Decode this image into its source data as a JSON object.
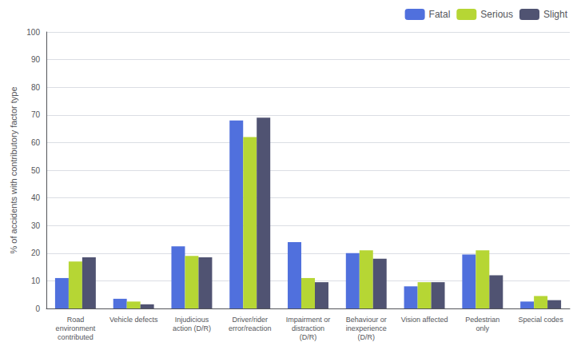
{
  "chart_data": {
    "type": "bar",
    "ylabel": "% of accidents with contributory factor type",
    "categories": [
      "Road\nenvironment\ncontributed",
      "Vehicle defects",
      "Injudicious\naction (D/R)",
      "Driver/rider\nerror/reaction",
      "Impairment or\ndistraction\n(D/R)",
      "Behaviour or\ninexperience\n(D/R)",
      "Vision affected",
      "Pedestrian\nonly",
      "Special codes"
    ],
    "series": [
      {
        "name": "Fatal",
        "values": [
          11,
          3.5,
          22.5,
          68,
          24,
          20,
          8,
          19.5,
          2.5
        ]
      },
      {
        "name": "Serious",
        "values": [
          17,
          2.5,
          19,
          62,
          11,
          21,
          9.5,
          21,
          4.5
        ]
      },
      {
        "name": "Slight",
        "values": [
          18.5,
          1.5,
          18.5,
          69,
          9.5,
          18,
          9.5,
          12,
          3
        ]
      }
    ],
    "ylim": [
      0,
      100
    ],
    "yticks": [
      0,
      10,
      20,
      30,
      40,
      50,
      60,
      70,
      80,
      90,
      100
    ],
    "grid": true,
    "legend": "upper right"
  }
}
